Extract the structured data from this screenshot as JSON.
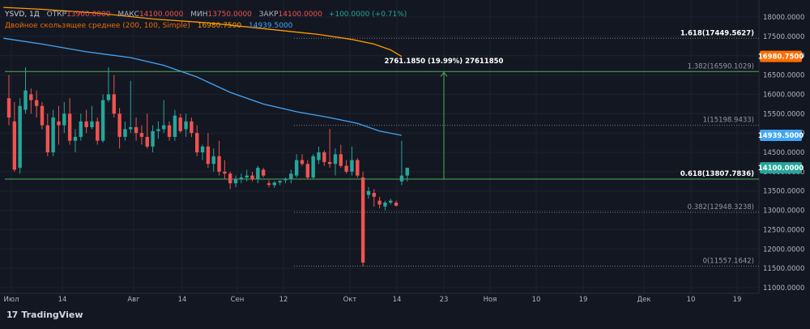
{
  "theme": {
    "background": "#131722",
    "grid": "#1e222d",
    "axis_text": "#b2b5be",
    "up": "#26a69a",
    "down": "#ef5350",
    "ma200": "#ff9800",
    "ma100": "#42a5f5",
    "fib": "#7b7f89",
    "fib_solid": "#4caf50"
  },
  "legend": {
    "symbol": "YSVD, 1Д",
    "open_label": "ОТКР",
    "open": "13900.0000",
    "high_label": "МАКС",
    "high": "14100.0000",
    "low_label": "МИН",
    "low": "13750.0000",
    "close_label": "ЗАКР",
    "close": "14100.0000",
    "change": "+100.0000 (+0.71%)",
    "ma_title": "Двойное скользящее среднее (200, 100, Simple)",
    "ma_long": "16980.7500",
    "ma_short": "14939.5000"
  },
  "branding": {
    "logo_mark": "17",
    "logo_text": "TradingView"
  },
  "chart_data": {
    "type": "candlestick",
    "interval": "1 day",
    "y_range": [
      11000,
      18000
    ],
    "y_ticks": [
      "11000.0000",
      "11500.0000",
      "12000.0000",
      "12500.0000",
      "13000.0000",
      "13500.0000",
      "14000.0000",
      "14500.0000",
      "15000.0000",
      "15500.0000",
      "16000.0000",
      "16500.0000",
      "17000.0000",
      "17500.0000",
      "18000.0000"
    ],
    "x_ticks": [
      "Июл",
      "14",
      "Авг",
      "14",
      "Сен",
      "12",
      "Окт",
      "14",
      "23",
      "Ноя",
      "10",
      "19",
      "Дек",
      "10",
      "19"
    ],
    "candles": [
      {
        "o": 15900,
        "h": 16500,
        "l": 15200,
        "c": 15400
      },
      {
        "o": 15300,
        "h": 15800,
        "l": 14000,
        "c": 14050
      },
      {
        "o": 14100,
        "h": 15900,
        "l": 13950,
        "c": 15700
      },
      {
        "o": 15600,
        "h": 16700,
        "l": 15500,
        "c": 16100
      },
      {
        "o": 16000,
        "h": 16150,
        "l": 15500,
        "c": 15850
      },
      {
        "o": 15850,
        "h": 16100,
        "l": 15400,
        "c": 15700
      },
      {
        "o": 15700,
        "h": 15800,
        "l": 15100,
        "c": 15200
      },
      {
        "o": 15200,
        "h": 15500,
        "l": 14400,
        "c": 14500
      },
      {
        "o": 14500,
        "h": 15600,
        "l": 14400,
        "c": 15400
      },
      {
        "o": 15300,
        "h": 15700,
        "l": 14700,
        "c": 15200
      },
      {
        "o": 15200,
        "h": 15800,
        "l": 15000,
        "c": 15500
      },
      {
        "o": 15500,
        "h": 15900,
        "l": 14700,
        "c": 14800
      },
      {
        "o": 14800,
        "h": 15100,
        "l": 14500,
        "c": 14900
      },
      {
        "o": 14900,
        "h": 15500,
        "l": 14800,
        "c": 15300
      },
      {
        "o": 15300,
        "h": 15600,
        "l": 15000,
        "c": 15150
      },
      {
        "o": 15150,
        "h": 15700,
        "l": 15100,
        "c": 15300
      },
      {
        "o": 15300,
        "h": 15400,
        "l": 14700,
        "c": 14800
      },
      {
        "o": 14800,
        "h": 16000,
        "l": 14750,
        "c": 15850
      },
      {
        "o": 15850,
        "h": 16700,
        "l": 15800,
        "c": 16000
      },
      {
        "o": 16000,
        "h": 16500,
        "l": 15400,
        "c": 15500
      },
      {
        "o": 15500,
        "h": 15650,
        "l": 14600,
        "c": 14900
      },
      {
        "o": 14900,
        "h": 15300,
        "l": 14800,
        "c": 15100
      },
      {
        "o": 15100,
        "h": 16350,
        "l": 15000,
        "c": 15150
      },
      {
        "o": 15150,
        "h": 15400,
        "l": 14800,
        "c": 15000
      },
      {
        "o": 15000,
        "h": 15200,
        "l": 14700,
        "c": 14900
      },
      {
        "o": 14900,
        "h": 15500,
        "l": 14600,
        "c": 14650
      },
      {
        "o": 14650,
        "h": 15200,
        "l": 14500,
        "c": 15050
      },
      {
        "o": 15050,
        "h": 15300,
        "l": 14850,
        "c": 15100
      },
      {
        "o": 15100,
        "h": 15850,
        "l": 15000,
        "c": 15200
      },
      {
        "o": 15200,
        "h": 15300,
        "l": 14800,
        "c": 14900
      },
      {
        "o": 14900,
        "h": 15600,
        "l": 14800,
        "c": 15450
      },
      {
        "o": 15400,
        "h": 15500,
        "l": 15000,
        "c": 15050
      },
      {
        "o": 15100,
        "h": 15500,
        "l": 14900,
        "c": 15300
      },
      {
        "o": 15300,
        "h": 15400,
        "l": 14900,
        "c": 15000
      },
      {
        "o": 15000,
        "h": 15200,
        "l": 14400,
        "c": 14500
      },
      {
        "o": 14500,
        "h": 14700,
        "l": 14300,
        "c": 14650
      },
      {
        "o": 14650,
        "h": 15000,
        "l": 14100,
        "c": 14200
      },
      {
        "o": 14200,
        "h": 14600,
        "l": 14000,
        "c": 14400
      },
      {
        "o": 14400,
        "h": 14800,
        "l": 13900,
        "c": 14000
      },
      {
        "o": 14000,
        "h": 14300,
        "l": 13800,
        "c": 13950
      },
      {
        "o": 13950,
        "h": 14000,
        "l": 13550,
        "c": 13700
      },
      {
        "o": 13700,
        "h": 13900,
        "l": 13600,
        "c": 13800
      },
      {
        "o": 13800,
        "h": 13950,
        "l": 13700,
        "c": 13850
      },
      {
        "o": 13850,
        "h": 14050,
        "l": 13750,
        "c": 13900
      },
      {
        "o": 13900,
        "h": 14000,
        "l": 13750,
        "c": 13800
      },
      {
        "o": 13800,
        "h": 14150,
        "l": 13700,
        "c": 14100
      },
      {
        "o": 14050,
        "h": 14100,
        "l": 13850,
        "c": 13900
      },
      {
        "o": 13700,
        "h": 13780,
        "l": 13600,
        "c": 13660
      },
      {
        "o": 13650,
        "h": 13760,
        "l": 13580,
        "c": 13720
      },
      {
        "o": 13720,
        "h": 13780,
        "l": 13650,
        "c": 13760
      },
      {
        "o": 13780,
        "h": 13850,
        "l": 13700,
        "c": 13820
      },
      {
        "o": 13800,
        "h": 14050,
        "l": 13700,
        "c": 13950
      },
      {
        "o": 13900,
        "h": 14450,
        "l": 13850,
        "c": 14300
      },
      {
        "o": 14300,
        "h": 14450,
        "l": 14150,
        "c": 14200
      },
      {
        "o": 14200,
        "h": 14300,
        "l": 13800,
        "c": 13850
      },
      {
        "o": 13850,
        "h": 14450,
        "l": 13800,
        "c": 14400
      },
      {
        "o": 14300,
        "h": 14650,
        "l": 14200,
        "c": 14500
      },
      {
        "o": 14500,
        "h": 14550,
        "l": 14150,
        "c": 14250
      },
      {
        "o": 14250,
        "h": 15100,
        "l": 14100,
        "c": 14200
      },
      {
        "o": 14200,
        "h": 14600,
        "l": 13900,
        "c": 14450
      },
      {
        "o": 14450,
        "h": 14700,
        "l": 14100,
        "c": 14150
      },
      {
        "o": 14150,
        "h": 14300,
        "l": 13950,
        "c": 14000
      },
      {
        "o": 14000,
        "h": 14650,
        "l": 13900,
        "c": 14300
      },
      {
        "o": 14300,
        "h": 14350,
        "l": 13850,
        "c": 13900
      },
      {
        "o": 13850,
        "h": 14000,
        "l": 11550,
        "c": 11650
      },
      {
        "o": 13400,
        "h": 13600,
        "l": 13300,
        "c": 13500
      },
      {
        "o": 13450,
        "h": 13550,
        "l": 13100,
        "c": 13350
      },
      {
        "o": 13250,
        "h": 13350,
        "l": 13050,
        "c": 13150
      },
      {
        "o": 13100,
        "h": 13250,
        "l": 13000,
        "c": 13200
      },
      {
        "o": 13200,
        "h": 13300,
        "l": 13150,
        "c": 13250
      },
      {
        "o": 13200,
        "h": 13250,
        "l": 13100,
        "c": 13120
      },
      {
        "o": 13750,
        "h": 14800,
        "l": 13650,
        "c": 13900
      },
      {
        "o": 13900,
        "h": 14100,
        "l": 13750,
        "c": 14100
      }
    ],
    "ma_long": [
      [
        -1,
        18250
      ],
      [
        6,
        18200
      ],
      [
        16,
        18100
      ],
      [
        26,
        17950
      ],
      [
        36,
        17850
      ],
      [
        46,
        17700
      ],
      [
        56,
        17550
      ],
      [
        62,
        17420
      ],
      [
        66,
        17300
      ],
      [
        69,
        17150
      ],
      [
        71,
        16980
      ]
    ],
    "ma_short": [
      [
        -1,
        17450
      ],
      [
        6,
        17300
      ],
      [
        14,
        17100
      ],
      [
        22,
        16950
      ],
      [
        28,
        16750
      ],
      [
        34,
        16450
      ],
      [
        40,
        16050
      ],
      [
        46,
        15750
      ],
      [
        52,
        15550
      ],
      [
        58,
        15400
      ],
      [
        63,
        15250
      ],
      [
        67,
        15050
      ],
      [
        71,
        14940
      ]
    ],
    "fib_levels": [
      {
        "label": "0(11557.1642)",
        "value": 11557.1642
      },
      {
        "label": "0.382(12948.3238)",
        "value": 12948.3238
      },
      {
        "label": "0.618(13807.7836)",
        "value": 13807.7836,
        "emphasis": true
      },
      {
        "label": "1(15198.9433)",
        "value": 15198.9433
      },
      {
        "label": "1.382(16590.1029)",
        "value": 16590.1029
      },
      {
        "label": "1.618(17449.5627)",
        "value": 17449.5627,
        "emphasis": true
      }
    ],
    "measure_label": "2761.1850 (19.99%) 27611850",
    "measure_from": 13807.7836,
    "measure_to": 16568.9686,
    "price_tags": [
      {
        "label": "16980.7500",
        "value": 16980.75,
        "color": "#ff6d00",
        "text": "#ffffff"
      },
      {
        "label": "14939.5000",
        "value": 14939.5,
        "color": "#42a5f5",
        "text": "#ffffff"
      },
      {
        "label": "14100.0000",
        "value": 14100.0,
        "color": "#26a69a",
        "text": "#ffffff"
      }
    ]
  }
}
